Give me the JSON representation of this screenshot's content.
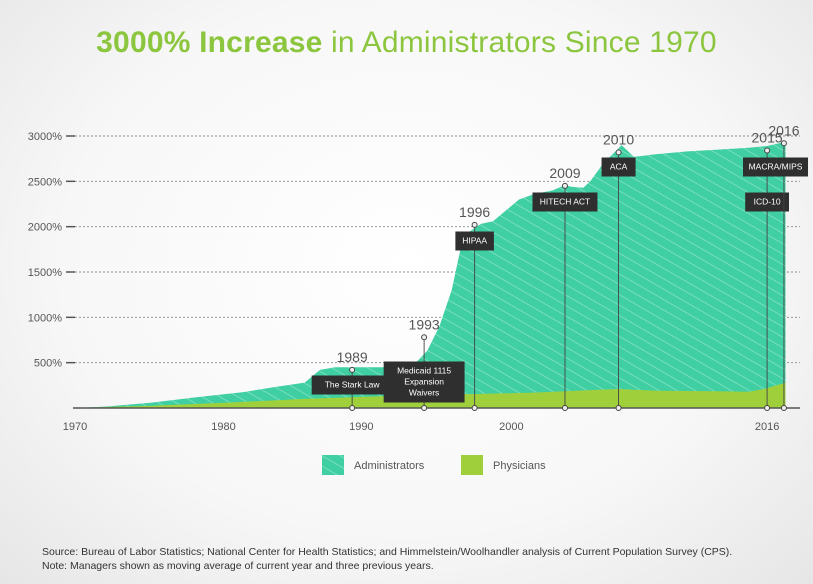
{
  "title": {
    "highlight": "3000% Increase",
    "rest": " in Administrators Since 1970"
  },
  "chart_data": {
    "type": "area",
    "x_ticks": [
      "1970",
      "1980",
      "1990",
      "2000",
      "2016"
    ],
    "y_ticks": [
      "500%",
      "1000%",
      "1500%",
      "2000%",
      "2500%",
      "3000%"
    ],
    "ylim": [
      0,
      3000
    ],
    "grid": true,
    "legend_position": "bottom",
    "series": [
      {
        "name": "Administrators",
        "color": "#3fcfa2",
        "points": [
          [
            1970,
            0
          ],
          [
            1972,
            15
          ],
          [
            1975,
            60
          ],
          [
            1978,
            120
          ],
          [
            1981,
            175
          ],
          [
            1983,
            230
          ],
          [
            1985,
            280
          ],
          [
            1986,
            420
          ],
          [
            1987,
            450
          ],
          [
            1989,
            450
          ],
          [
            1991,
            450
          ],
          [
            1992,
            455
          ],
          [
            1993,
            630
          ],
          [
            1993.8,
            900
          ],
          [
            1994.6,
            1300
          ],
          [
            1995.3,
            1850
          ],
          [
            1995.8,
            1950
          ],
          [
            1996.5,
            2030
          ],
          [
            1997.3,
            2060
          ],
          [
            1998.3,
            2200
          ],
          [
            1999,
            2300
          ],
          [
            2000,
            2360
          ],
          [
            2001.2,
            2400
          ],
          [
            2002,
            2460
          ],
          [
            2002.4,
            2440
          ],
          [
            2003.2,
            2430
          ],
          [
            2003.7,
            2510
          ],
          [
            2004.5,
            2700
          ],
          [
            2005.3,
            2830
          ],
          [
            2005.7,
            2900
          ],
          [
            2006.5,
            2770
          ],
          [
            2008,
            2800
          ],
          [
            2010,
            2830
          ],
          [
            2012,
            2850
          ],
          [
            2014,
            2870
          ],
          [
            2015.2,
            2890
          ],
          [
            2016,
            2920
          ],
          [
            2016.4,
            2940
          ]
        ]
      },
      {
        "name": "Physicians",
        "color": "#9fd03c",
        "points": [
          [
            1970,
            0
          ],
          [
            1975,
            25
          ],
          [
            1980,
            60
          ],
          [
            1985,
            100
          ],
          [
            1990,
            130
          ],
          [
            1995,
            150
          ],
          [
            2000,
            170
          ],
          [
            2004,
            200
          ],
          [
            2005.5,
            210
          ],
          [
            2008,
            190
          ],
          [
            2012,
            185
          ],
          [
            2014,
            180
          ],
          [
            2015,
            210
          ],
          [
            2016.4,
            280
          ]
        ]
      }
    ],
    "events": [
      {
        "year_label": "1989",
        "label_lines": [
          "The Stark Law"
        ],
        "x": 1988.1,
        "y": 420
      },
      {
        "year_label": "1993",
        "label_lines": [
          "Medicaid 1115",
          "Expansion",
          "Waivers"
        ],
        "x": 1992.8,
        "y": 780
      },
      {
        "year_label": "1996",
        "label_lines": [
          "HIPAA"
        ],
        "x": 1996.1,
        "y": 2020
      },
      {
        "year_label": "2009",
        "label_lines": [
          "HITECH ACT"
        ],
        "x": 2002,
        "y": 2450
      },
      {
        "year_label": "2010",
        "label_lines": [
          "ACA"
        ],
        "x": 2005.5,
        "y": 2820
      },
      {
        "year_label": "2015",
        "label_lines": [
          "ICD-10"
        ],
        "x": 2015.2,
        "y": 2840
      },
      {
        "year_label": "2016",
        "label_lines": [
          "MACRA/MIPS"
        ],
        "x": 2016.3,
        "y": 2920
      }
    ]
  },
  "source_line": "Source: Bureau of Labor Statistics; National Center for Health Statistics; and Himmelstein/Woolhandler analysis of Current Population Survey (CPS).",
  "note_line": "Note: Managers shown as moving average of current year and three previous years."
}
